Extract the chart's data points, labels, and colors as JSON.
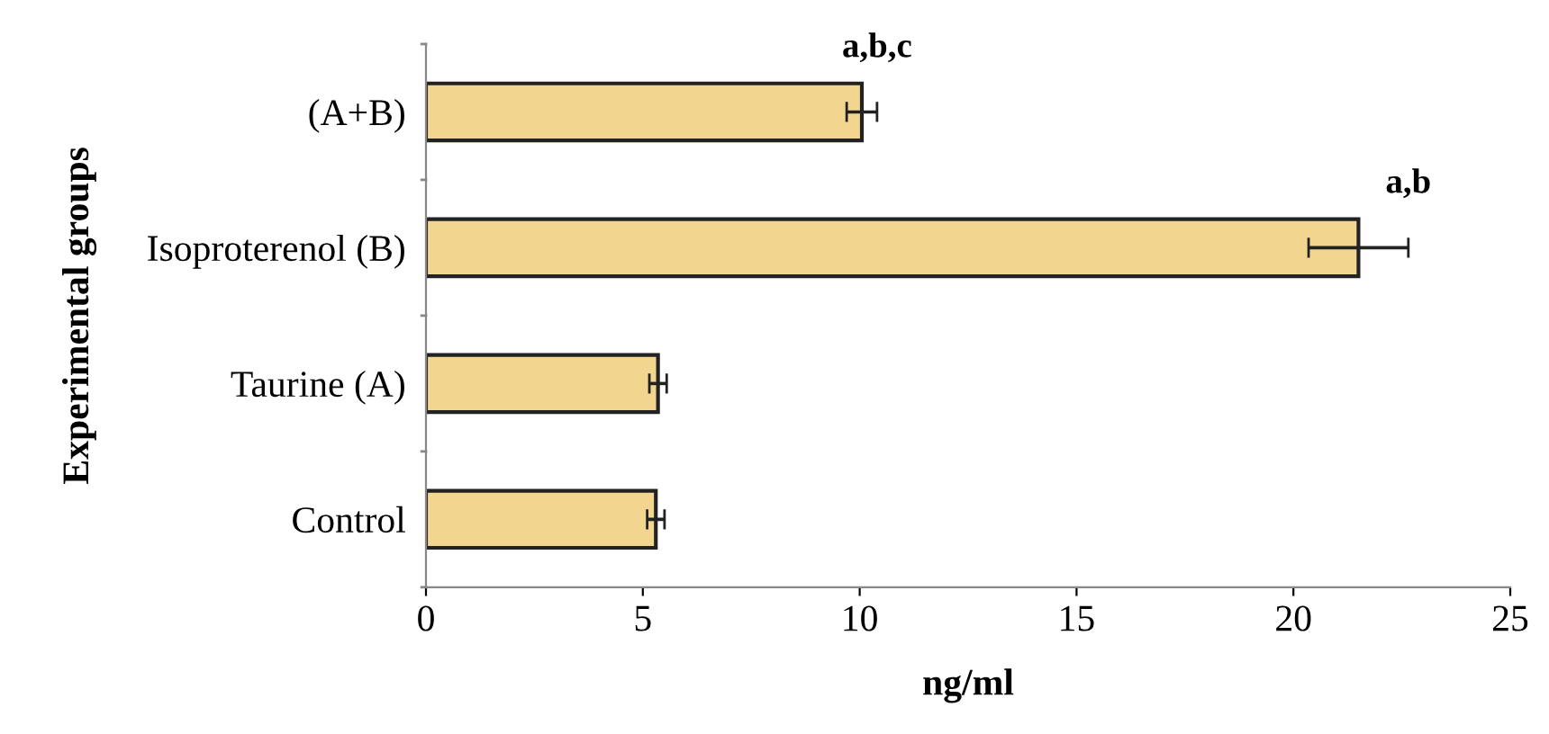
{
  "chart_data": {
    "type": "bar",
    "orientation": "horizontal",
    "ylabel": "Experimental groups",
    "xlabel": "ng/ml",
    "categories": [
      "(A+B)",
      "Isoproterenol (B)",
      "Taurine (A)",
      "Control"
    ],
    "values": [
      10.05,
      21.5,
      5.35,
      5.3
    ],
    "errors": [
      0.35,
      1.15,
      0.2,
      0.2
    ],
    "color": "#f2d58e",
    "xlim": [
      0,
      25
    ],
    "xticks": [
      0,
      5,
      10,
      15,
      20,
      25
    ],
    "grid": false,
    "annotations": [
      {
        "text": "a,b,c",
        "x": 10.05,
        "y": "(A+B)"
      },
      {
        "text": "a,b",
        "x": 21.5,
        "y": "Isoproterenol (B)"
      }
    ]
  }
}
